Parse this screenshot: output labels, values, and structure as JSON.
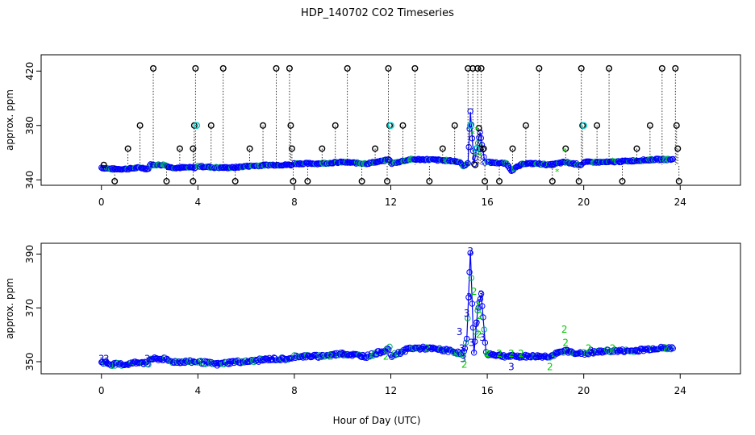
{
  "title": "HDP_140702  CO2 Timeseries",
  "chart_data": [
    {
      "type": "scatter",
      "title": "HDP_140702  CO2 Timeseries",
      "xlabel": "",
      "ylabel": "approx. ppm",
      "xlim": [
        -2.5,
        26.5
      ],
      "ylim": [
        336,
        432
      ],
      "xticks": [
        0,
        4,
        8,
        12,
        16,
        20,
        24
      ],
      "yticks": [
        340,
        380,
        420
      ],
      "grid": false,
      "colors": {
        "main": "#0000ff",
        "outlier": "#000000",
        "cyan": "#00cccc",
        "green": "#00cc00",
        "drop": "#000000"
      },
      "series": [
        {
          "color": "#0000ff",
          "segments": [
            [
              [
                0,
                349
              ],
              [
                0.4,
                348
              ],
              [
                1.0,
                348
              ],
              [
                1.6,
                349
              ],
              [
                1.95,
                348
              ]
            ],
            [
              [
                2.0,
                351
              ],
              [
                2.6,
                351
              ],
              [
                2.9,
                349
              ],
              [
                3.9,
                349
              ]
            ],
            [
              [
                4.0,
                350
              ],
              [
                4.8,
                349
              ],
              [
                5.5,
                349
              ],
              [
                6.0,
                350
              ],
              [
                7.0,
                351
              ],
              [
                7.9,
                351
              ]
            ],
            [
              [
                8.0,
                352
              ],
              [
                9.0,
                352
              ],
              [
                10.0,
                353
              ],
              [
                11.0,
                352
              ],
              [
                11.7,
                354
              ],
              [
                11.95,
                355
              ]
            ],
            [
              [
                12.0,
                352
              ],
              [
                12.8,
                355
              ],
              [
                13.5,
                355
              ],
              [
                14.5,
                354
              ],
              [
                14.9,
                353
              ],
              [
                15.0,
                350
              ],
              [
                15.2,
                352
              ],
              [
                15.3,
                390
              ],
              [
                15.45,
                352
              ],
              [
                15.7,
                375
              ],
              [
                15.9,
                353
              ]
            ],
            [
              [
                16.0,
                353
              ],
              [
                16.8,
                352
              ],
              [
                17.0,
                347
              ],
              [
                17.5,
                352
              ],
              [
                18.0,
                352
              ],
              [
                18.6,
                351
              ],
              [
                19.2,
                353
              ],
              [
                19.9,
                351
              ]
            ],
            [
              [
                20.0,
                353
              ],
              [
                21.0,
                353
              ],
              [
                22.0,
                354
              ],
              [
                23.0,
                355
              ],
              [
                23.7,
                355
              ]
            ]
          ]
        }
      ],
      "outliers": [
        {
          "x": 0.1,
          "y": 351
        },
        {
          "x": 0.55,
          "y": 339
        },
        {
          "x": 1.1,
          "y": 363
        },
        {
          "x": 1.6,
          "y": 380
        },
        {
          "x": 2.15,
          "y": 422
        },
        {
          "x": 2.7,
          "y": 339
        },
        {
          "x": 3.25,
          "y": 363
        },
        {
          "x": 3.8,
          "y": 339
        },
        {
          "x": 3.8,
          "y": 363
        },
        {
          "x": 3.85,
          "y": 380
        },
        {
          "x": 3.9,
          "y": 422
        },
        {
          "x": 4.55,
          "y": 380
        },
        {
          "x": 5.05,
          "y": 422
        },
        {
          "x": 5.55,
          "y": 339
        },
        {
          "x": 6.15,
          "y": 363
        },
        {
          "x": 6.7,
          "y": 380
        },
        {
          "x": 7.25,
          "y": 422
        },
        {
          "x": 7.8,
          "y": 422
        },
        {
          "x": 7.85,
          "y": 380
        },
        {
          "x": 7.9,
          "y": 363
        },
        {
          "x": 7.95,
          "y": 339
        },
        {
          "x": 8.55,
          "y": 339
        },
        {
          "x": 9.15,
          "y": 363
        },
        {
          "x": 9.7,
          "y": 380
        },
        {
          "x": 10.2,
          "y": 422
        },
        {
          "x": 10.8,
          "y": 339
        },
        {
          "x": 11.35,
          "y": 363
        },
        {
          "x": 11.85,
          "y": 339
        },
        {
          "x": 11.9,
          "y": 422
        },
        {
          "x": 11.95,
          "y": 380
        },
        {
          "x": 12.5,
          "y": 380
        },
        {
          "x": 13.0,
          "y": 422
        },
        {
          "x": 13.6,
          "y": 339
        },
        {
          "x": 14.15,
          "y": 363
        },
        {
          "x": 14.65,
          "y": 380
        },
        {
          "x": 15.2,
          "y": 422
        },
        {
          "x": 15.4,
          "y": 422
        },
        {
          "x": 15.5,
          "y": 351
        },
        {
          "x": 15.6,
          "y": 422
        },
        {
          "x": 15.65,
          "y": 378
        },
        {
          "x": 15.7,
          "y": 363
        },
        {
          "x": 15.75,
          "y": 422
        },
        {
          "x": 15.85,
          "y": 363
        },
        {
          "x": 15.9,
          "y": 339
        },
        {
          "x": 16.5,
          "y": 339
        },
        {
          "x": 17.05,
          "y": 363
        },
        {
          "x": 17.6,
          "y": 380
        },
        {
          "x": 18.15,
          "y": 422
        },
        {
          "x": 18.7,
          "y": 339
        },
        {
          "x": 19.25,
          "y": 363
        },
        {
          "x": 19.8,
          "y": 339
        },
        {
          "x": 19.9,
          "y": 422
        },
        {
          "x": 19.95,
          "y": 380
        },
        {
          "x": 20.55,
          "y": 380
        },
        {
          "x": 21.05,
          "y": 422
        },
        {
          "x": 21.6,
          "y": 339
        },
        {
          "x": 22.2,
          "y": 363
        },
        {
          "x": 22.75,
          "y": 380
        },
        {
          "x": 23.25,
          "y": 422
        },
        {
          "x": 23.8,
          "y": 422
        },
        {
          "x": 23.85,
          "y": 380
        },
        {
          "x": 23.9,
          "y": 363
        },
        {
          "x": 23.95,
          "y": 339
        }
      ],
      "cyan_points": [
        {
          "x": 3.95,
          "y": 380
        },
        {
          "x": 12.0,
          "y": 380
        },
        {
          "x": 15.3,
          "y": 380
        },
        {
          "x": 20.0,
          "y": 380
        },
        {
          "x": 15.55,
          "y": 363
        }
      ],
      "green_points": [
        {
          "x": 15.4,
          "y": 374
        },
        {
          "x": 15.55,
          "y": 377
        },
        {
          "x": 15.7,
          "y": 358
        },
        {
          "x": 19.2,
          "y": 361
        },
        {
          "x": 18.9,
          "y": 346
        },
        {
          "x": 21.2,
          "y": 354
        }
      ]
    },
    {
      "type": "scatter",
      "xlabel": "Hour of Day (UTC)",
      "ylabel": "approx. ppm",
      "xlim": [
        -2.5,
        26.5
      ],
      "ylim": [
        345.5,
        394
      ],
      "xticks": [
        0,
        4,
        8,
        12,
        16,
        20,
        24
      ],
      "yticks": [
        350,
        370,
        390
      ],
      "grid": false,
      "colors": {
        "line": "#0000ff",
        "label3": "#0000cc",
        "label2": "#00cc00"
      },
      "series": [
        {
          "color": "#0000ff",
          "segments": [
            [
              [
                0,
                350
              ],
              [
                0.4,
                349
              ],
              [
                1.0,
                349
              ],
              [
                1.6,
                350
              ],
              [
                1.95,
                349
              ]
            ],
            [
              [
                2.0,
                351
              ],
              [
                2.6,
                351
              ],
              [
                2.9,
                350
              ],
              [
                3.9,
                350
              ]
            ],
            [
              [
                4.0,
                350
              ],
              [
                4.8,
                349
              ],
              [
                5.5,
                350
              ],
              [
                6.0,
                350
              ],
              [
                7.0,
                351
              ],
              [
                7.9,
                351
              ]
            ],
            [
              [
                8.0,
                352
              ],
              [
                9.0,
                352
              ],
              [
                10.0,
                353
              ],
              [
                11.0,
                352
              ],
              [
                11.7,
                354
              ],
              [
                11.95,
                355
              ]
            ],
            [
              [
                12.0,
                352
              ],
              [
                12.8,
                355
              ],
              [
                13.5,
                355
              ],
              [
                14.5,
                354
              ],
              [
                14.9,
                353
              ],
              [
                15.0,
                352
              ],
              [
                15.15,
                358
              ],
              [
                15.3,
                391
              ],
              [
                15.45,
                353
              ],
              [
                15.6,
                369
              ],
              [
                15.75,
                375
              ],
              [
                15.95,
                353
              ]
            ],
            [
              [
                16.0,
                353
              ],
              [
                16.8,
                352
              ],
              [
                17.5,
                352
              ],
              [
                18.0,
                352
              ],
              [
                18.6,
                352
              ],
              [
                19.2,
                354
              ],
              [
                19.9,
                353
              ]
            ],
            [
              [
                20.0,
                353
              ],
              [
                21.0,
                354
              ],
              [
                22.0,
                354
              ],
              [
                23.0,
                355
              ],
              [
                23.7,
                355
              ]
            ]
          ]
        }
      ],
      "labels_3": [
        {
          "x": 0.0,
          "y": 351
        },
        {
          "x": 0.2,
          "y": 351
        },
        {
          "x": 1.9,
          "y": 351
        },
        {
          "x": 10.0,
          "y": 353
        },
        {
          "x": 14.85,
          "y": 361
        },
        {
          "x": 14.95,
          "y": 355
        },
        {
          "x": 15.0,
          "y": 351
        },
        {
          "x": 15.3,
          "y": 391
        },
        {
          "x": 15.15,
          "y": 368
        },
        {
          "x": 15.25,
          "y": 374
        },
        {
          "x": 15.35,
          "y": 357
        },
        {
          "x": 15.55,
          "y": 364
        },
        {
          "x": 15.75,
          "y": 375
        },
        {
          "x": 15.8,
          "y": 359
        },
        {
          "x": 17.0,
          "y": 348
        },
        {
          "x": 18.1,
          "y": 352
        },
        {
          "x": 19.3,
          "y": 354
        },
        {
          "x": 20.3,
          "y": 354
        }
      ],
      "labels_2": [
        {
          "x": 15.05,
          "y": 349
        },
        {
          "x": 15.45,
          "y": 376
        },
        {
          "x": 15.6,
          "y": 371
        },
        {
          "x": 15.65,
          "y": 360
        },
        {
          "x": 15.7,
          "y": 367
        },
        {
          "x": 16.0,
          "y": 353
        },
        {
          "x": 16.5,
          "y": 353
        },
        {
          "x": 17.0,
          "y": 353
        },
        {
          "x": 17.4,
          "y": 353
        },
        {
          "x": 18.6,
          "y": 348
        },
        {
          "x": 19.2,
          "y": 362
        },
        {
          "x": 19.25,
          "y": 357
        },
        {
          "x": 9.5,
          "y": 352
        },
        {
          "x": 11.8,
          "y": 352
        },
        {
          "x": 13.5,
          "y": 355
        },
        {
          "x": 21.2,
          "y": 355
        },
        {
          "x": 20.2,
          "y": 355
        },
        {
          "x": 23.4,
          "y": 355
        }
      ]
    }
  ]
}
